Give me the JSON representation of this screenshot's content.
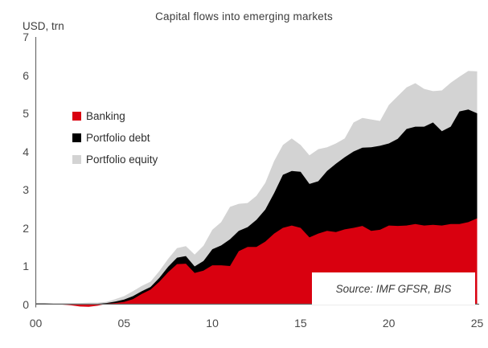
{
  "header": {
    "title": "Capital flows into emerging markets",
    "units_label": "USD, trn"
  },
  "legend": {
    "items": [
      {
        "label": "Banking",
        "color": "#d9000f"
      },
      {
        "label": "Portfolio debt",
        "color": "#000000"
      },
      {
        "label": "Portfolio equity",
        "color": "#d3d3d3"
      }
    ]
  },
  "source_box": {
    "text": "Source: IMF GFSR, BIS"
  },
  "axes": {
    "y_ticks": [
      "7",
      "6",
      "5",
      "4",
      "3",
      "2",
      "1",
      "0"
    ],
    "y_tick_values": [
      7,
      6,
      5,
      4,
      3,
      2,
      1,
      0
    ],
    "x_ticks": [
      "00",
      "05",
      "10",
      "15",
      "20",
      "25"
    ],
    "x_tick_years": [
      2000,
      2005,
      2010,
      2015,
      2020,
      2025
    ],
    "axis_color": "#6b6b6b"
  },
  "chart_data": {
    "type": "area",
    "stacked": true,
    "title": "Capital flows into emerging markets",
    "xlabel": "",
    "ylabel": "USD, trn",
    "xlim": [
      2000,
      2025
    ],
    "ylim": [
      0,
      7
    ],
    "grid": false,
    "legend_position": "upper-left",
    "x": [
      2000,
      2000.5,
      2001,
      2001.5,
      2002,
      2002.5,
      2003,
      2003.5,
      2004,
      2004.5,
      2005,
      2005.5,
      2006,
      2006.5,
      2007,
      2007.5,
      2008,
      2008.5,
      2009,
      2009.5,
      2010,
      2010.5,
      2011,
      2011.5,
      2012,
      2012.5,
      2013,
      2013.5,
      2014,
      2014.5,
      2015,
      2015.5,
      2016,
      2016.5,
      2017,
      2017.5,
      2018,
      2018.5,
      2019,
      2019.5,
      2020,
      2020.5,
      2021,
      2021.5,
      2022,
      2022.5,
      2023,
      2023.5,
      2024,
      2024.5,
      2025
    ],
    "series": [
      {
        "name": "Banking",
        "color": "#d9000f",
        "values": [
          0.01,
          0.01,
          0.0,
          -0.01,
          -0.03,
          -0.06,
          -0.07,
          -0.04,
          0.01,
          0.03,
          0.06,
          0.13,
          0.27,
          0.38,
          0.59,
          0.84,
          1.05,
          1.06,
          0.82,
          0.88,
          1.02,
          1.02,
          1.0,
          1.39,
          1.5,
          1.5,
          1.64,
          1.85,
          2.0,
          2.06,
          2.0,
          1.75,
          1.85,
          1.92,
          1.89,
          1.96,
          2.0,
          2.05,
          1.92,
          1.95,
          2.06,
          2.05,
          2.06,
          2.1,
          2.06,
          2.08,
          2.06,
          2.1,
          2.1,
          2.15,
          2.25
        ]
      },
      {
        "name": "Portfolio debt",
        "color": "#000000",
        "values": [
          0.01,
          0.01,
          0.01,
          0.01,
          0.01,
          0.01,
          0.01,
          0.01,
          0.02,
          0.04,
          0.06,
          0.08,
          0.07,
          0.07,
          0.1,
          0.14,
          0.17,
          0.2,
          0.17,
          0.25,
          0.42,
          0.52,
          0.7,
          0.53,
          0.52,
          0.71,
          0.84,
          1.06,
          1.39,
          1.43,
          1.47,
          1.4,
          1.37,
          1.57,
          1.79,
          1.89,
          2.0,
          2.05,
          2.19,
          2.2,
          2.15,
          2.28,
          2.53,
          2.55,
          2.59,
          2.68,
          2.47,
          2.55,
          2.95,
          2.95,
          2.75
        ]
      },
      {
        "name": "Portfolio equity",
        "color": "#d3d3d3",
        "values": [
          0.01,
          0.01,
          0.02,
          0.02,
          0.02,
          0.02,
          0.03,
          0.03,
          0.03,
          0.06,
          0.09,
          0.13,
          0.14,
          0.14,
          0.18,
          0.21,
          0.25,
          0.26,
          0.31,
          0.4,
          0.51,
          0.61,
          0.85,
          0.71,
          0.63,
          0.63,
          0.7,
          0.84,
          0.78,
          0.85,
          0.7,
          0.75,
          0.84,
          0.62,
          0.53,
          0.49,
          0.76,
          0.78,
          0.73,
          0.65,
          1.01,
          1.12,
          1.09,
          1.14,
          0.99,
          0.82,
          1.07,
          1.15,
          0.91,
          1.01,
          1.1
        ]
      }
    ]
  }
}
